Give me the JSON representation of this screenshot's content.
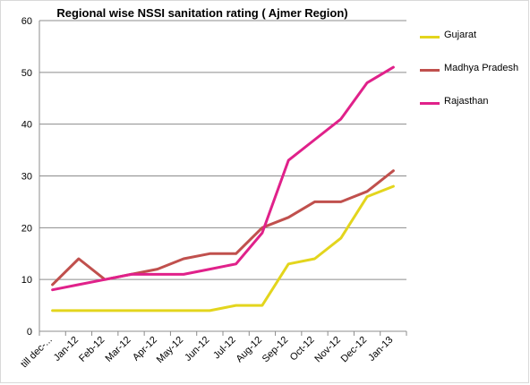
{
  "chart_data": {
    "type": "line",
    "title": "Regional wise NSSI sanitation rating ( Ajmer Region)",
    "categories": [
      "till dec-...",
      "Jan-12",
      "Feb-12",
      "Mar-12",
      "Apr-12",
      "May-12",
      "Jun-12",
      "Jul-12",
      "Aug-12",
      "Sep-12",
      "Oct-12",
      "Nov-12",
      "Dec-12",
      "Jan-13"
    ],
    "ylim": [
      0,
      60
    ],
    "yticks": [
      0,
      10,
      20,
      30,
      40,
      50,
      60
    ],
    "grid": true,
    "legend_position": "right",
    "series": [
      {
        "name": "Gujarat",
        "color": "#e3d51d",
        "values": [
          4,
          4,
          4,
          4,
          4,
          4,
          4,
          5,
          5,
          13,
          14,
          18,
          26,
          28
        ]
      },
      {
        "name": "Madhya Pradesh",
        "color": "#c0504d",
        "values": [
          9,
          14,
          10,
          11,
          12,
          14,
          15,
          15,
          20,
          22,
          25,
          25,
          27,
          31
        ]
      },
      {
        "name": "Rajasthan",
        "color": "#e0218a",
        "values": [
          8,
          9,
          10,
          11,
          11,
          11,
          12,
          13,
          19,
          33,
          37,
          41,
          48,
          51
        ]
      }
    ]
  }
}
